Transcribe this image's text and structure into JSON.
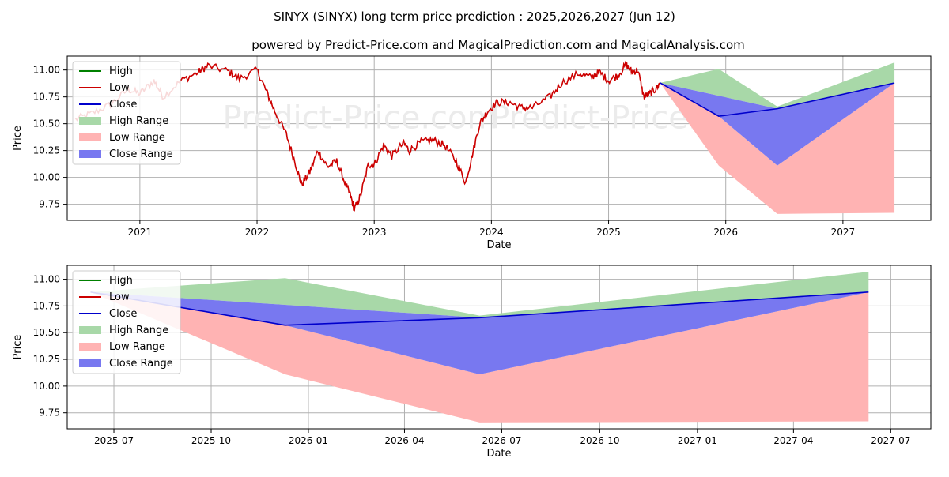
{
  "title_line1": "SINYX (SINYX) long term price prediction : 2025,2026,2027 (Jun 12)",
  "title_line2": "powered by Predict-Price.com and MagicalPrediction.com and MagicalAnalysis.com",
  "watermark": "Predict-Price.com",
  "colors": {
    "high": "#008000",
    "low": "#cc0000",
    "close": "#0000cc",
    "high_range": "#a8d8a8",
    "low_range": "#ffb3b3",
    "close_range": "#7878f0",
    "grid": "#b0b0b0",
    "watermark": "#ebebeb"
  },
  "legend": {
    "high": "High",
    "low": "Low",
    "close": "Close",
    "high_range": "High Range",
    "low_range": "Low Range",
    "close_range": "Close Range"
  },
  "chart_data": [
    {
      "type": "line",
      "panel": "top",
      "xlabel": "Date",
      "ylabel": "Price",
      "xlim": [
        2020.38,
        2027.75
      ],
      "ylim": [
        9.6,
        11.13
      ],
      "yticks": [
        "9.75",
        "10.00",
        "10.25",
        "10.50",
        "10.75",
        "11.00"
      ],
      "ytick_values": [
        9.75,
        10.0,
        10.25,
        10.5,
        10.75,
        11.0
      ],
      "xticks": [
        "2021",
        "2022",
        "2023",
        "2024",
        "2025",
        "2026",
        "2027"
      ],
      "xtick_values": [
        2021,
        2022,
        2023,
        2024,
        2025,
        2026,
        2027
      ],
      "history_anchors": [
        [
          2020.45,
          10.54
        ],
        [
          2020.6,
          10.6
        ],
        [
          2020.75,
          10.68
        ],
        [
          2020.9,
          10.82
        ],
        [
          2021.0,
          10.78
        ],
        [
          2021.12,
          10.9
        ],
        [
          2021.2,
          10.75
        ],
        [
          2021.35,
          10.9
        ],
        [
          2021.5,
          10.98
        ],
        [
          2021.58,
          11.04
        ],
        [
          2021.75,
          10.99
        ],
        [
          2021.85,
          10.92
        ],
        [
          2022.0,
          11.0
        ],
        [
          2022.08,
          10.8
        ],
        [
          2022.15,
          10.62
        ],
        [
          2022.25,
          10.4
        ],
        [
          2022.33,
          10.12
        ],
        [
          2022.38,
          9.93
        ],
        [
          2022.45,
          10.05
        ],
        [
          2022.52,
          10.25
        ],
        [
          2022.6,
          10.1
        ],
        [
          2022.68,
          10.15
        ],
        [
          2022.75,
          9.95
        ],
        [
          2022.8,
          9.82
        ],
        [
          2022.83,
          9.7
        ],
        [
          2022.88,
          9.82
        ],
        [
          2022.95,
          10.12
        ],
        [
          2023.0,
          10.12
        ],
        [
          2023.08,
          10.3
        ],
        [
          2023.15,
          10.2
        ],
        [
          2023.25,
          10.32
        ],
        [
          2023.3,
          10.25
        ],
        [
          2023.4,
          10.33
        ],
        [
          2023.5,
          10.35
        ],
        [
          2023.6,
          10.3
        ],
        [
          2023.7,
          10.15
        ],
        [
          2023.78,
          9.95
        ],
        [
          2023.83,
          10.18
        ],
        [
          2023.9,
          10.5
        ],
        [
          2023.97,
          10.62
        ],
        [
          2024.05,
          10.7
        ],
        [
          2024.15,
          10.7
        ],
        [
          2024.25,
          10.65
        ],
        [
          2024.35,
          10.65
        ],
        [
          2024.5,
          10.75
        ],
        [
          2024.6,
          10.88
        ],
        [
          2024.75,
          10.97
        ],
        [
          2024.85,
          10.93
        ],
        [
          2024.92,
          10.98
        ],
        [
          2025.0,
          10.9
        ],
        [
          2025.08,
          10.95
        ],
        [
          2025.15,
          11.05
        ],
        [
          2025.2,
          10.98
        ],
        [
          2025.25,
          11.0
        ],
        [
          2025.3,
          10.75
        ],
        [
          2025.35,
          10.78
        ],
        [
          2025.4,
          10.82
        ],
        [
          2025.44,
          10.88
        ]
      ],
      "forecast_dates": [
        2025.44,
        2025.94,
        2026.44,
        2027.44
      ],
      "high_range_upper": [
        10.88,
        11.01,
        10.66,
        11.07
      ],
      "high_range_lower": [
        10.88,
        10.76,
        10.64,
        10.88
      ],
      "close_range_upper": [
        10.88,
        10.76,
        10.64,
        10.88
      ],
      "close_range_lower": [
        10.88,
        10.57,
        10.11,
        10.88
      ],
      "low_range_upper": [
        10.88,
        10.57,
        10.11,
        10.88
      ],
      "low_range_lower": [
        10.88,
        10.11,
        9.66,
        9.67
      ],
      "close_line": [
        10.88,
        10.57,
        10.64,
        10.88
      ]
    },
    {
      "type": "line",
      "panel": "bottom",
      "xlabel": "Date",
      "ylabel": "Price",
      "xlim": [
        2025.38,
        2027.6
      ],
      "ylim": [
        9.6,
        11.13
      ],
      "yticks": [
        "9.75",
        "10.00",
        "10.25",
        "10.50",
        "10.75",
        "11.00"
      ],
      "ytick_values": [
        9.75,
        10.0,
        10.25,
        10.5,
        10.75,
        11.0
      ],
      "xticks": [
        "2025-07",
        "2025-10",
        "2026-01",
        "2026-04",
        "2026-07",
        "2026-10",
        "2027-01",
        "2027-04",
        "2027-07"
      ],
      "xtick_values": [
        2025.5,
        2025.75,
        2026.0,
        2026.247,
        2026.497,
        2026.749,
        2027.0,
        2027.247,
        2027.497
      ],
      "forecast_dates": [
        2025.44,
        2025.94,
        2026.44,
        2027.44
      ],
      "high_range_upper": [
        10.88,
        11.01,
        10.66,
        11.07
      ],
      "high_range_lower": [
        10.88,
        10.76,
        10.64,
        10.88
      ],
      "close_range_upper": [
        10.88,
        10.76,
        10.64,
        10.88
      ],
      "close_range_lower": [
        10.88,
        10.57,
        10.11,
        10.88
      ],
      "low_range_upper": [
        10.88,
        10.57,
        10.11,
        10.88
      ],
      "low_range_lower": [
        10.88,
        10.11,
        9.66,
        9.67
      ],
      "close_line": [
        10.88,
        10.57,
        10.64,
        10.88
      ]
    }
  ]
}
